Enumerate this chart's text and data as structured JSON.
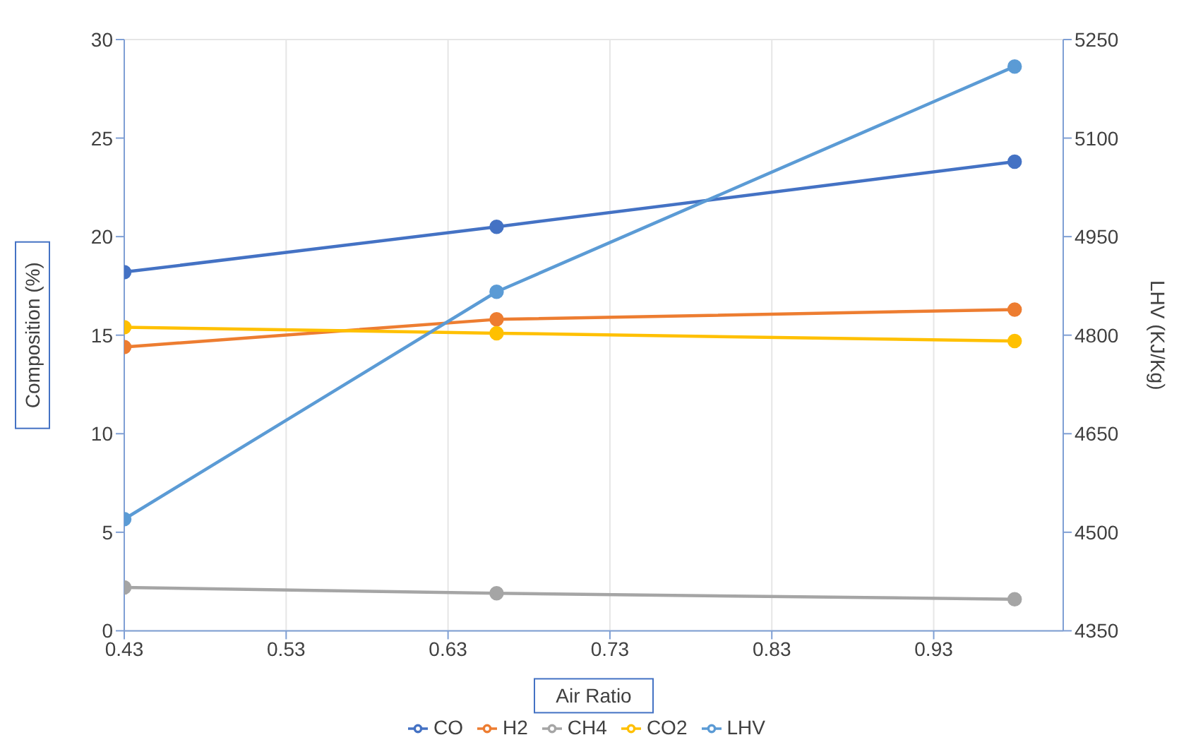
{
  "chart_data": {
    "type": "line",
    "xlabel": "Air Ratio",
    "ylabel": "Composition (%)",
    "y2label": "LHV (KJ/Kg)",
    "x": [
      0.43,
      0.66,
      0.98
    ],
    "xlim": [
      0.43,
      1.01
    ],
    "xticks": [
      0.43,
      0.53,
      0.63,
      0.73,
      0.83,
      0.93
    ],
    "ylim": [
      0,
      30
    ],
    "yticks": [
      0,
      5,
      10,
      15,
      20,
      25,
      30
    ],
    "y2lim": [
      4350,
      5250
    ],
    "y2ticks": [
      4350,
      4500,
      4650,
      4800,
      4950,
      5100,
      5250
    ],
    "grid": true,
    "legend": "bottom",
    "marker": "circle",
    "line_style": "solid",
    "series": [
      {
        "name": "CO",
        "color": "#4472c4",
        "values": [
          18.2,
          20.5,
          23.8
        ]
      },
      {
        "name": "H2",
        "color": "#ed7d31",
        "values": [
          14.4,
          15.8,
          16.3
        ]
      },
      {
        "name": "CH4",
        "color": "#a5a5a5",
        "values": [
          2.2,
          1.9,
          1.6
        ]
      },
      {
        "name": "CO2",
        "color": "#ffc000",
        "values": [
          15.4,
          15.1,
          14.7
        ]
      },
      {
        "name": "LHV",
        "color": "#5b9bd5",
        "values": [
          4520,
          4866,
          5209
        ],
        "axis": "y2"
      }
    ]
  }
}
